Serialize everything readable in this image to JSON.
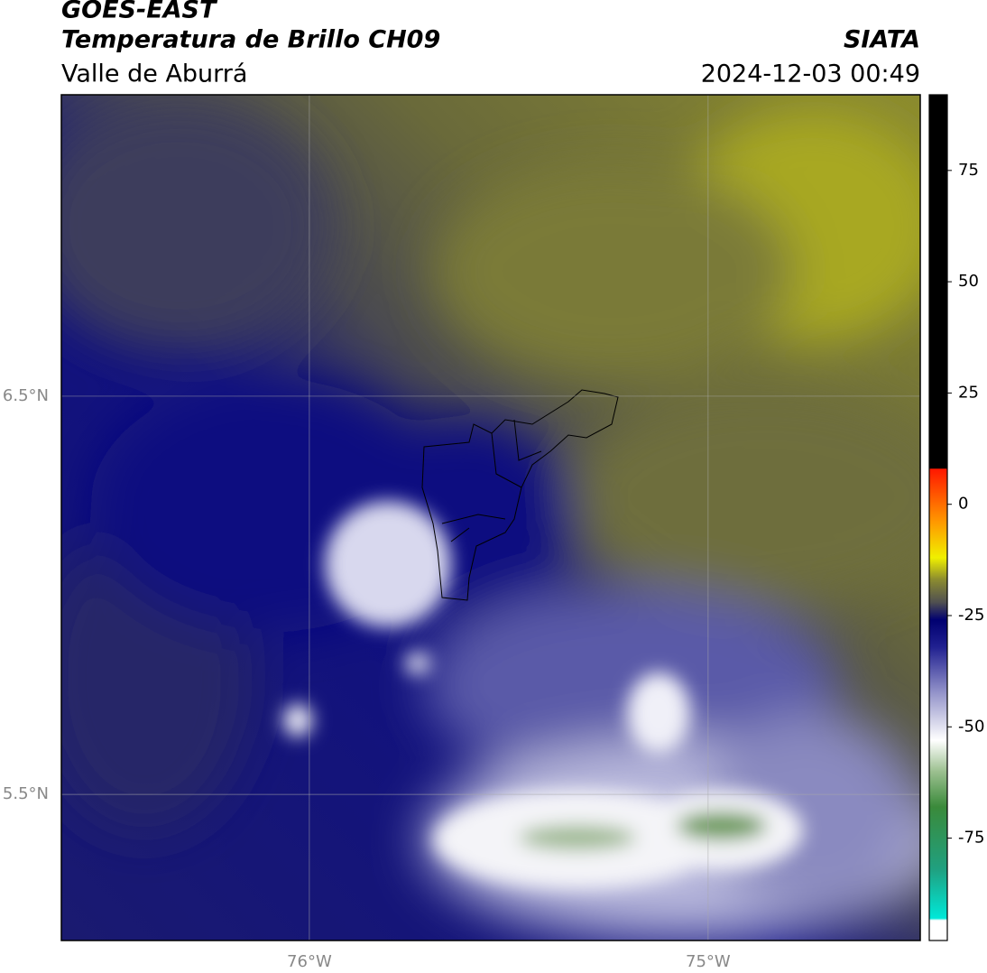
{
  "header": {
    "title": "GOES-EAST",
    "subtitle": "Temperatura de Brillo CH09",
    "source": "SIATA",
    "region": "Valle de Aburrá",
    "timestamp": "2024-12-03 00:49"
  },
  "map": {
    "xlim": [
      -76.622,
      -74.468
    ],
    "ylim": [
      5.133,
      7.257
    ],
    "xticks": [
      {
        "value": -76,
        "label": "76°W"
      },
      {
        "value": -75,
        "label": "75°W"
      }
    ],
    "yticks": [
      {
        "value": 6.5,
        "label": "6.5°N"
      },
      {
        "value": 5.5,
        "label": "5.5°N"
      }
    ],
    "grid": true
  },
  "colorbar": {
    "lim": [
      -98,
      92
    ],
    "ticks": [
      75,
      50,
      25,
      0,
      -25,
      -50,
      -75
    ],
    "stops": [
      {
        "value": -98,
        "color": "#ffffff"
      },
      {
        "value": -93.5,
        "color": "#ffffff"
      },
      {
        "value": -93,
        "color": "#00e8d8"
      },
      {
        "value": -82,
        "color": "#20a080"
      },
      {
        "value": -68,
        "color": "#3a8a3a"
      },
      {
        "value": -60,
        "color": "#9cc090"
      },
      {
        "value": -53,
        "color": "#ffffff"
      },
      {
        "value": -42,
        "color": "#9090c8"
      },
      {
        "value": -32,
        "color": "#202090"
      },
      {
        "value": -26,
        "color": "#000070"
      },
      {
        "value": -22,
        "color": "#505050"
      },
      {
        "value": -17,
        "color": "#8a8a30"
      },
      {
        "value": -12,
        "color": "#f0f000"
      },
      {
        "value": -4,
        "color": "#ff9900"
      },
      {
        "value": 7.9,
        "color": "#ff1800"
      },
      {
        "value": 8.1,
        "color": "#000000"
      },
      {
        "value": 92,
        "color": "#000000"
      }
    ]
  }
}
